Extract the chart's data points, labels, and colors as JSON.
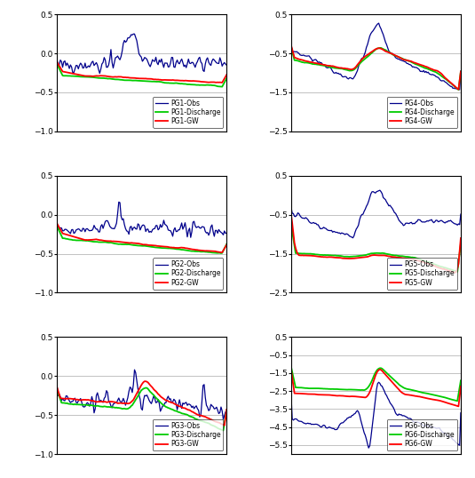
{
  "colors": {
    "obs": "#00008B",
    "discharge": "#00CC00",
    "gw": "#FF0000"
  },
  "n_points": 152,
  "subplots": [
    {
      "label": "PG1",
      "ylim": [
        -1,
        0.5
      ],
      "yticks": [
        -1,
        -0.5,
        0,
        0.5
      ]
    },
    {
      "label": "PG4",
      "ylim": [
        -2.5,
        0.5
      ],
      "yticks": [
        -2.5,
        -1.5,
        -0.5,
        0.5
      ]
    },
    {
      "label": "PG2",
      "ylim": [
        -1,
        0.5
      ],
      "yticks": [
        -1,
        -0.5,
        0,
        0.5
      ]
    },
    {
      "label": "PG5",
      "ylim": [
        -2.5,
        0.5
      ],
      "yticks": [
        -2.5,
        -1.5,
        -0.5,
        0.5
      ]
    },
    {
      "label": "PG3",
      "ylim": [
        -1,
        0.5
      ],
      "yticks": [
        -1,
        -0.5,
        0,
        0.5
      ]
    },
    {
      "label": "PG6",
      "ylim": [
        -6,
        0.5
      ],
      "yticks": [
        -5.5,
        -4.5,
        -3.5,
        -2.5,
        -1.5,
        -0.5,
        0.5
      ]
    }
  ]
}
